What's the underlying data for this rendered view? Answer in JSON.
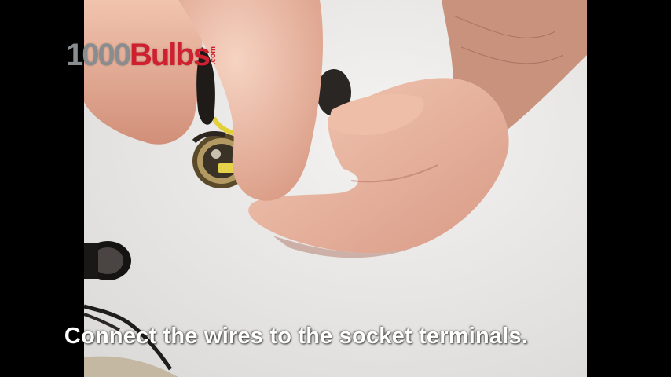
{
  "logo": {
    "number": "1000",
    "word": "Bulbs",
    "suffix": ".com"
  },
  "caption": "Connect the wires to the socket terminals.",
  "colors": {
    "letterbox": "#000000",
    "logo_gray": "#8a8d90",
    "logo_red": "#cf2030",
    "caption_text": "#ffffff",
    "table_surface": "#ecebea"
  }
}
